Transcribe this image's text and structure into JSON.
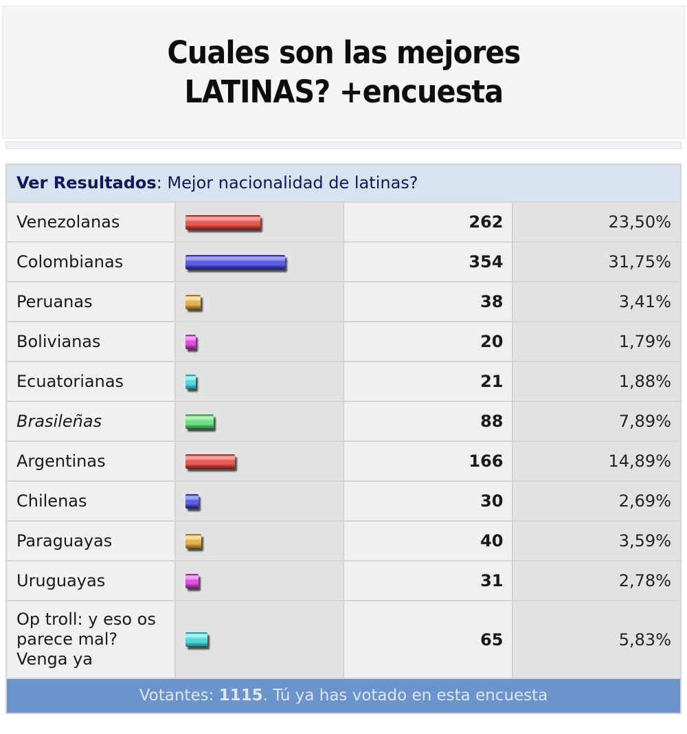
{
  "title": {
    "line1": "Cuales son las mejores",
    "line2": "LATINAS? +encuesta"
  },
  "poll": {
    "header": {
      "bold": "Ver Resultados",
      "rest": ": Mejor nacionalidad de latinas?"
    },
    "rows": [
      {
        "label": "Venezolanas",
        "votes": "262",
        "pct": "23,50%",
        "pct_value": 23.5,
        "color": "red",
        "italic": false
      },
      {
        "label": "Colombianas",
        "votes": "354",
        "pct": "31,75%",
        "pct_value": 31.75,
        "color": "blue",
        "italic": false
      },
      {
        "label": "Peruanas",
        "votes": "38",
        "pct": "3,41%",
        "pct_value": 3.41,
        "color": "gold",
        "italic": false
      },
      {
        "label": "Bolivianas",
        "votes": "20",
        "pct": "1,79%",
        "pct_value": 1.79,
        "color": "magenta",
        "italic": false
      },
      {
        "label": "Ecuatorianas",
        "votes": "21",
        "pct": "1,88%",
        "pct_value": 1.88,
        "color": "cyan",
        "italic": false
      },
      {
        "label": "Brasileñas",
        "votes": "88",
        "pct": "7,89%",
        "pct_value": 7.89,
        "color": "green",
        "italic": true
      },
      {
        "label": "Argentinas",
        "votes": "166",
        "pct": "14,89%",
        "pct_value": 14.89,
        "color": "red",
        "italic": false
      },
      {
        "label": "Chilenas",
        "votes": "30",
        "pct": "2,69%",
        "pct_value": 2.69,
        "color": "blue",
        "italic": false
      },
      {
        "label": "Paraguayas",
        "votes": "40",
        "pct": "3,59%",
        "pct_value": 3.59,
        "color": "gold",
        "italic": false
      },
      {
        "label": "Uruguayas",
        "votes": "31",
        "pct": "2,78%",
        "pct_value": 2.78,
        "color": "magenta",
        "italic": false
      },
      {
        "label": "Op troll: y eso os parece mal? Venga ya",
        "votes": "65",
        "pct": "5,83%",
        "pct_value": 5.83,
        "color": "cyan",
        "italic": false
      }
    ],
    "footer": {
      "prefix": "Votantes: ",
      "count": "1115",
      "suffix": ". Tú ya has votado en esta encuesta"
    }
  },
  "colors": {
    "header_bg": "#d7e4ef",
    "header_text": "#15155e",
    "footer_bg": "#6b93cc",
    "footer_text": "#dde7f3",
    "label_col_bg": "#f0f0f0",
    "bar_col_bg": "#e2e2e2",
    "bar_palette": {
      "red": {
        "light": "#f4a09a",
        "mid": "#e25a54",
        "dark": "#9a2a24",
        "deep": "#3c0e0a"
      },
      "blue": {
        "light": "#a0a2f4",
        "mid": "#5a5ee2",
        "dark": "#2a2c9a",
        "deep": "#0e0f3c"
      },
      "gold": {
        "light": "#f6e0a2",
        "mid": "#e6b14e",
        "dark": "#9a7424",
        "deep": "#3c2c0a"
      },
      "magenta": {
        "light": "#f4a0f4",
        "mid": "#dd52dd",
        "dark": "#9a249a",
        "deep": "#3c0a3c"
      },
      "cyan": {
        "light": "#a4f2f2",
        "mid": "#52d8dd",
        "dark": "#249a9a",
        "deep": "#0a3c3c"
      },
      "green": {
        "light": "#aef2b8",
        "mid": "#6edd84",
        "dark": "#2a9a42",
        "deep": "#0a3c18"
      }
    }
  }
}
